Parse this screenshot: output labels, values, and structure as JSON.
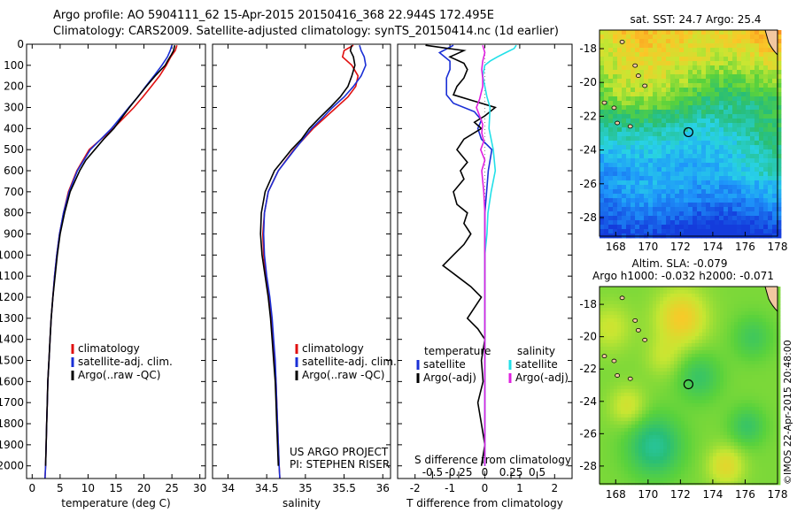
{
  "header": {
    "line1": "Argo profile: AO 5904111_62 15-Apr-2015 20150416_368 22.944S 172.495E",
    "line2": "Climatology: CARS2009. Satellite-adjusted climatology: synTS_20150414.nc (1d earlier)"
  },
  "colors": {
    "climatology": "#e01010",
    "satellite": "#1a2fd6",
    "argo": "#000000",
    "satellite_s": "#22e0e8",
    "argo_s": "#e020e0"
  },
  "depth_ticks": [
    0,
    100,
    200,
    300,
    400,
    500,
    600,
    700,
    800,
    900,
    1000,
    1100,
    1200,
    1300,
    1400,
    1500,
    1600,
    1700,
    1800,
    1900,
    2000
  ],
  "chart_data": [
    {
      "type": "line",
      "xlabel": "temperature (deg C)",
      "x_ticks": [
        0,
        5,
        10,
        15,
        20,
        25,
        30
      ],
      "xlim": [
        -1,
        31
      ],
      "ylim": [
        2060,
        0
      ],
      "legend": [
        "climatology",
        "satellite-adj. clim.",
        "Argo(..raw -QC)"
      ],
      "series": [
        {
          "name": "climatology",
          "color": "#e01010",
          "depth": [
            5,
            30,
            60,
            100,
            150,
            200,
            250,
            300,
            400,
            500,
            600,
            700,
            800,
            900,
            1000,
            1100,
            1200,
            1300,
            1400,
            1500,
            1600,
            1700,
            1800,
            1900,
            2000,
            2060
          ],
          "values": [
            25.9,
            25.6,
            24.8,
            24.0,
            22.8,
            21.3,
            19.8,
            18.2,
            14.5,
            10.2,
            8.0,
            6.5,
            5.6,
            4.9,
            4.4,
            4.0,
            3.7,
            3.4,
            3.2,
            3.0,
            2.8,
            2.7,
            2.6,
            2.5,
            2.4,
            2.3
          ]
        },
        {
          "name": "satellite-adj. clim.",
          "color": "#1a2fd6",
          "depth": [
            5,
            30,
            60,
            100,
            150,
            200,
            250,
            300,
            400,
            500,
            600,
            700,
            800,
            900,
            1000,
            1100,
            1200,
            1300,
            1400,
            1500,
            1600,
            1700,
            1800,
            1900,
            2000,
            2060
          ],
          "values": [
            25.0,
            24.7,
            24.2,
            23.2,
            21.8,
            20.3,
            18.9,
            17.3,
            14.2,
            10.4,
            8.1,
            6.6,
            5.6,
            4.9,
            4.4,
            4.0,
            3.7,
            3.4,
            3.2,
            3.0,
            2.8,
            2.7,
            2.6,
            2.5,
            2.4,
            2.3
          ]
        },
        {
          "name": "Argo(..raw -QC)",
          "color": "#000000",
          "depth": [
            5,
            30,
            50,
            80,
            100,
            150,
            200,
            250,
            300,
            350,
            400,
            450,
            500,
            550,
            600,
            700,
            800,
            900,
            1000,
            1100,
            1200,
            1300,
            1400,
            1500,
            1600,
            1700,
            1800,
            1900,
            2000
          ],
          "values": [
            25.5,
            25.3,
            24.9,
            24.2,
            23.8,
            22.0,
            20.4,
            18.9,
            17.4,
            16.0,
            14.6,
            12.8,
            11.2,
            9.6,
            8.5,
            6.8,
            5.8,
            5.0,
            4.5,
            4.1,
            3.7,
            3.4,
            3.2,
            3.0,
            2.8,
            2.7,
            2.6,
            2.5,
            2.4
          ]
        }
      ]
    },
    {
      "type": "line",
      "xlabel": "salinity",
      "x_ticks": [
        34,
        34.5,
        35,
        35.5,
        36
      ],
      "xlim": [
        33.8,
        36.1
      ],
      "ylim": [
        2060,
        0
      ],
      "legend": [
        "climatology",
        "satellite-adj. clim.",
        "Argo(..raw -QC)"
      ],
      "annotation": [
        "US ARGO PROJECT",
        "PI: STEPHEN RISER"
      ],
      "series": [
        {
          "name": "climatology",
          "color": "#e01010",
          "depth": [
            5,
            30,
            60,
            100,
            150,
            200,
            250,
            300,
            350,
            400,
            500,
            600,
            700,
            800,
            900,
            1000,
            1100,
            1200,
            1300,
            1400,
            1500,
            1600,
            1700,
            1800,
            1900,
            2000,
            2060
          ],
          "values": [
            35.62,
            35.5,
            35.48,
            35.6,
            35.68,
            35.65,
            35.55,
            35.4,
            35.25,
            35.1,
            34.85,
            34.65,
            34.52,
            34.47,
            34.45,
            34.46,
            34.49,
            34.53,
            34.56,
            34.58,
            34.6,
            34.62,
            34.63,
            34.64,
            34.65,
            34.66,
            34.67
          ]
        },
        {
          "name": "satellite-adj. clim.",
          "color": "#1a2fd6",
          "depth": [
            5,
            30,
            60,
            100,
            150,
            200,
            250,
            300,
            350,
            400,
            500,
            600,
            700,
            800,
            900,
            1000,
            1100,
            1200,
            1300,
            1400,
            1500,
            1600,
            1700,
            1800,
            1900,
            2000,
            2060
          ],
          "values": [
            35.7,
            35.72,
            35.76,
            35.78,
            35.72,
            35.62,
            35.5,
            35.35,
            35.22,
            35.08,
            34.86,
            34.65,
            34.52,
            34.47,
            34.46,
            34.47,
            34.5,
            34.54,
            34.57,
            34.59,
            34.61,
            34.62,
            34.63,
            34.64,
            34.65,
            34.66,
            34.67
          ]
        },
        {
          "name": "Argo(..raw -QC)",
          "color": "#000000",
          "depth": [
            5,
            30,
            60,
            100,
            150,
            200,
            250,
            300,
            350,
            400,
            450,
            500,
            600,
            700,
            800,
            900,
            1000,
            1100,
            1200,
            1300,
            1400,
            1500,
            1600,
            1700,
            1800,
            1900,
            2000
          ],
          "values": [
            35.6,
            35.58,
            35.62,
            35.64,
            35.6,
            35.55,
            35.45,
            35.32,
            35.18,
            35.05,
            34.95,
            34.82,
            34.6,
            34.48,
            34.43,
            34.42,
            34.44,
            34.48,
            34.52,
            34.55,
            34.57,
            34.59,
            34.61,
            34.62,
            34.63,
            34.64,
            34.65
          ]
        }
      ]
    },
    {
      "type": "line",
      "xlabel": "T difference from climatology",
      "x_ticks": [
        -2,
        -1,
        0,
        1,
        2
      ],
      "xlim": [
        -2.5,
        2.5
      ],
      "s_axis_label": "S difference from climatology",
      "s_ticks": [
        -0.5,
        -0.25,
        0,
        0.25,
        0.5
      ],
      "ylim": [
        2060,
        0
      ],
      "legend_headers": [
        "temperature",
        "salinity"
      ],
      "legend": [
        "satellite",
        "Argo(-adj)",
        "satellite",
        "Argo(-adj)"
      ],
      "series": [
        {
          "name": "satellite",
          "quantity": "temperature",
          "color": "#1a2fd6",
          "depth": [
            5,
            40,
            80,
            120,
            160,
            200,
            240,
            280,
            320,
            360,
            400,
            450,
            500,
            600,
            700,
            800,
            900,
            1000,
            1200,
            1400,
            1600,
            1800,
            2000
          ],
          "values": [
            -0.9,
            -1.3,
            -1.0,
            -1.0,
            -1.1,
            -1.1,
            -1.1,
            -0.9,
            -0.3,
            -0.1,
            -0.2,
            -0.1,
            0.2,
            0.1,
            0.05,
            0.0,
            0.0,
            0.0,
            0.0,
            0.0,
            0.0,
            0.0,
            0.0
          ]
        },
        {
          "name": "Argo(-adj)",
          "quantity": "temperature",
          "color": "#000000",
          "depth": [
            5,
            30,
            60,
            90,
            120,
            160,
            200,
            240,
            270,
            300,
            340,
            370,
            400,
            450,
            500,
            560,
            600,
            640,
            700,
            760,
            800,
            850,
            900,
            950,
            1000,
            1050,
            1100,
            1150,
            1200,
            1250,
            1300,
            1350,
            1400,
            1500,
            1600,
            1700,
            1800,
            1900,
            2000
          ],
          "values": [
            -1.7,
            -0.6,
            -1.0,
            -0.6,
            -0.5,
            -0.6,
            -0.8,
            -0.9,
            -0.3,
            0.3,
            0.0,
            -0.3,
            -0.1,
            -0.6,
            -0.8,
            -0.5,
            -0.7,
            -0.6,
            -0.9,
            -0.8,
            -0.5,
            -0.6,
            -0.4,
            -0.6,
            -0.9,
            -1.2,
            -0.8,
            -0.4,
            -0.1,
            -0.3,
            -0.5,
            -0.2,
            0.0,
            -0.1,
            -0.05,
            -0.2,
            -0.1,
            0.0,
            -0.1
          ]
        },
        {
          "name": "satellite",
          "quantity": "salinity",
          "color": "#22e0e8",
          "depth": [
            5,
            20,
            40,
            60,
            80,
            100,
            150,
            200,
            250,
            300,
            400,
            500,
            600,
            700,
            800,
            900,
            1000,
            1200,
            1400,
            1600,
            1800,
            2000
          ],
          "values": [
            0.3,
            0.28,
            0.2,
            0.12,
            0.05,
            0.0,
            -0.02,
            0.0,
            0.02,
            0.05,
            0.04,
            0.08,
            0.1,
            0.06,
            0.03,
            0.02,
            0.0,
            0.0,
            0.0,
            0.0,
            0.0,
            0.0
          ]
        },
        {
          "name": "Argo(-adj)",
          "quantity": "salinity",
          "color": "#e020e0",
          "depth": [
            5,
            40,
            80,
            120,
            160,
            200,
            260,
            300,
            340,
            380,
            420,
            460,
            500,
            550,
            600,
            700,
            800,
            900,
            1000,
            1200,
            1400,
            1600,
            1800,
            2000
          ],
          "values": [
            -0.02,
            0.0,
            -0.02,
            -0.03,
            -0.02,
            -0.02,
            -0.05,
            -0.08,
            -0.05,
            -0.02,
            -0.03,
            -0.01,
            -0.04,
            0.0,
            -0.03,
            -0.01,
            0.0,
            0.0,
            0.0,
            0.0,
            0.0,
            0.0,
            0.0,
            0.0
          ]
        }
      ]
    },
    {
      "type": "heatmap",
      "title": "sat. SST: 24.7  Argo: 25.4",
      "lon_ticks": [
        168,
        170,
        172,
        174,
        176,
        178
      ],
      "lat_ticks": [
        -18,
        -20,
        -22,
        -24,
        -26,
        -28
      ],
      "xlim": [
        167,
        178
      ],
      "ylim": [
        -29.1,
        -16.9
      ],
      "argo_position": {
        "lon": 172.495,
        "lat": -22.944
      }
    },
    {
      "type": "heatmap",
      "title_line1": "Altim. SLA: -0.079",
      "title_line2": "Argo h1000: -0.032  h2000: -0.071",
      "lon_ticks": [
        168,
        170,
        172,
        174,
        176,
        178
      ],
      "lat_ticks": [
        -18,
        -20,
        -22,
        -24,
        -26,
        -28
      ],
      "xlim": [
        167,
        178
      ],
      "ylim": [
        -29.1,
        -16.9
      ],
      "argo_position": {
        "lon": 172.495,
        "lat": -22.944
      }
    }
  ],
  "footer": {
    "credit": "©IMOS 22-Apr-2015 20:48:00"
  }
}
